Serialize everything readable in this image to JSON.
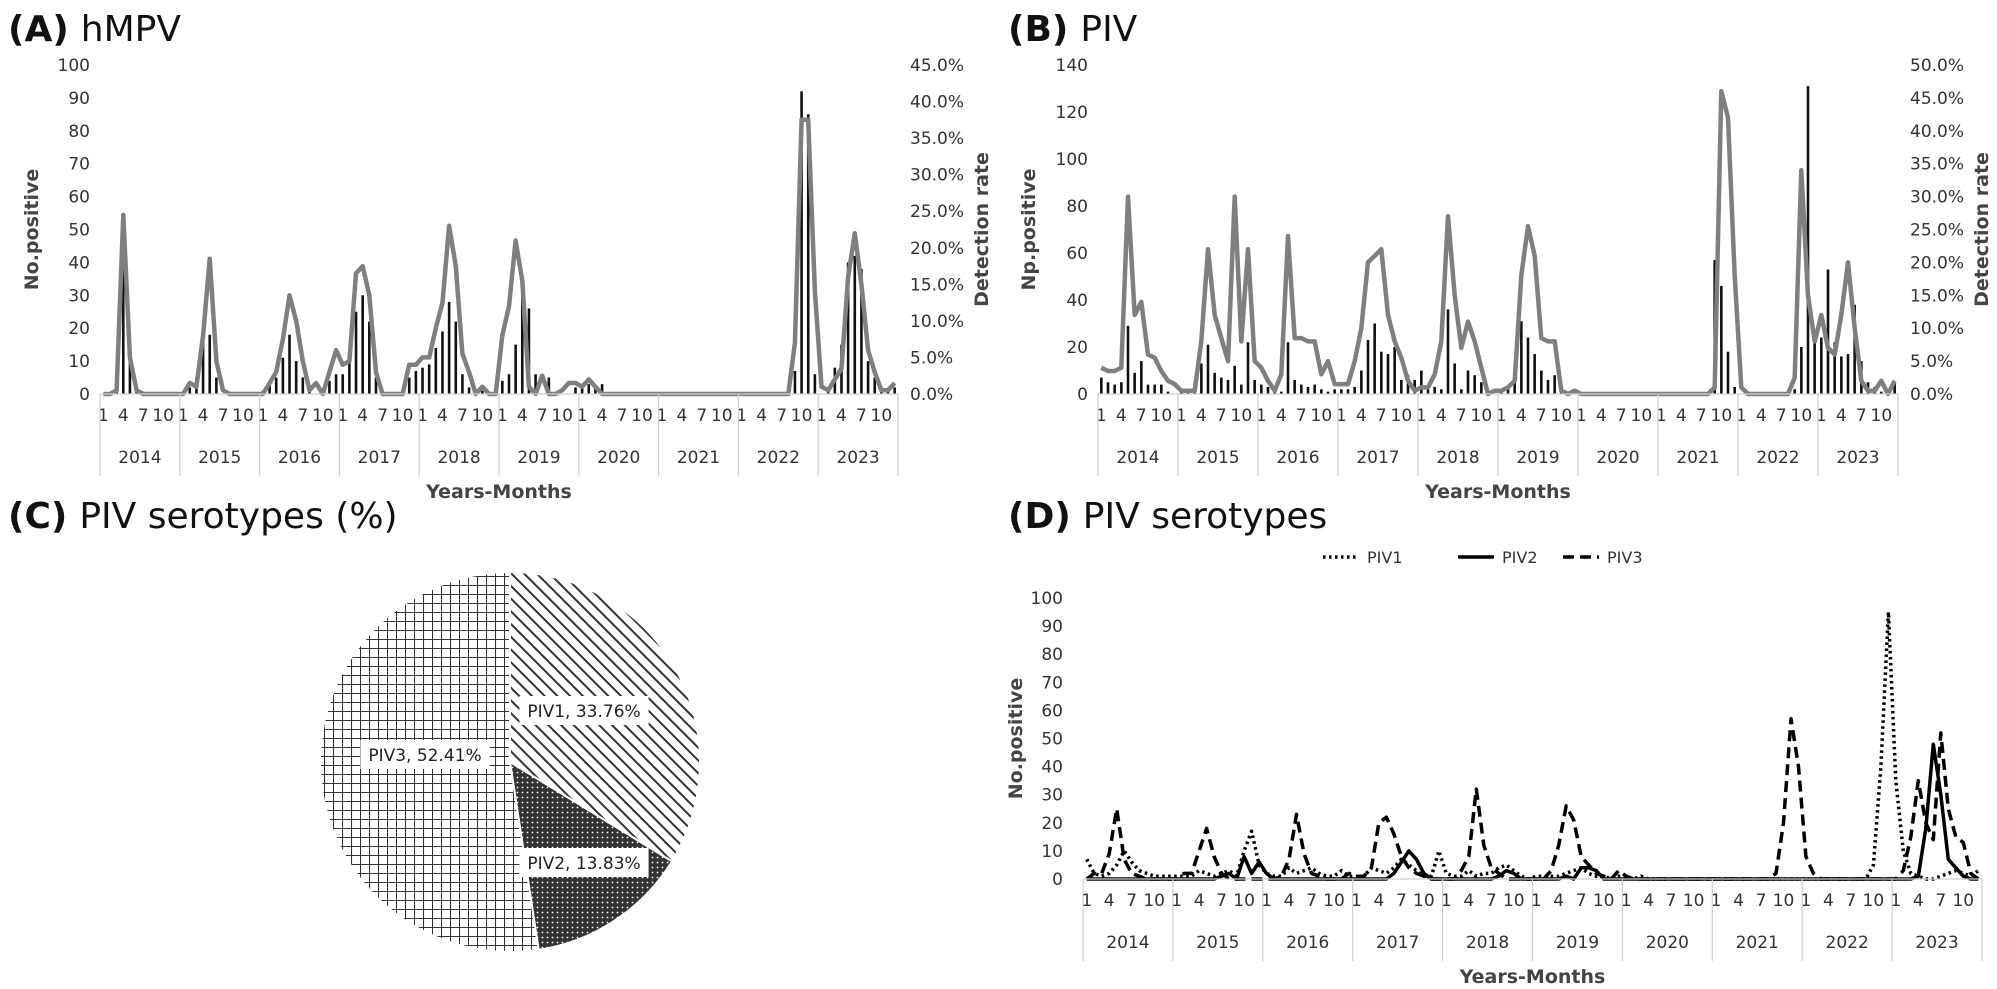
{
  "panel_a": {
    "letter": "(A)",
    "name": "hMPV"
  },
  "panel_b": {
    "letter": "(B)",
    "name": "PIV"
  },
  "panel_c": {
    "letter": "(C)",
    "name": "PIV serotypes (%)"
  },
  "panel_d": {
    "letter": "(D)",
    "name": "PIV serotypes"
  },
  "chart_data": [
    {
      "id": "A",
      "type": "bar+line",
      "title": "hMPV",
      "xlabel": "Years-Months",
      "ylabel": "No.positive",
      "y2label": "Detection rate",
      "ylim": [
        0,
        100
      ],
      "yticks": [
        "0",
        "10",
        "20",
        "30",
        "40",
        "50",
        "60",
        "70",
        "80",
        "90",
        "100"
      ],
      "y2lim": [
        0,
        45
      ],
      "y2ticks": [
        "0.0%",
        "5.0%",
        "10.0%",
        "15.0%",
        "20.0%",
        "25.0%",
        "30.0%",
        "35.0%",
        "40.0%",
        "45.0%"
      ],
      "years": [
        "2014",
        "2015",
        "2016",
        "2017",
        "2018",
        "2019",
        "2020",
        "2021",
        "2022",
        "2023"
      ],
      "month_ticks": [
        "1",
        "4",
        "7",
        "10"
      ],
      "series": [
        {
          "name": "No.positive",
          "kind": "bar",
          "values": [
            0,
            0,
            5,
            40,
            12,
            1,
            0,
            0,
            0,
            0,
            0,
            0,
            0,
            2,
            5,
            18,
            18,
            5,
            0,
            0,
            0,
            0,
            0,
            0,
            1,
            3,
            5,
            11,
            18,
            10,
            5,
            1,
            0,
            0,
            4,
            6,
            6,
            10,
            25,
            30,
            22,
            5,
            0,
            0,
            0,
            0,
            5,
            7,
            8,
            9,
            14,
            19,
            28,
            22,
            6,
            2,
            0,
            1,
            0,
            0,
            4,
            6,
            15,
            30,
            26,
            6,
            0,
            5,
            0,
            0,
            0,
            2,
            2,
            3,
            2,
            3,
            0,
            0,
            0,
            0,
            0,
            0,
            0,
            0,
            0,
            0,
            0,
            0,
            0,
            0,
            0,
            0,
            0,
            0,
            0,
            0,
            0,
            0,
            0,
            0,
            0,
            0,
            0,
            0,
            7,
            92,
            85,
            6,
            0,
            2,
            8,
            15,
            40,
            42,
            38,
            10,
            5,
            2,
            1,
            2
          ]
        },
        {
          "name": "Detection rate",
          "kind": "line",
          "values": [
            0,
            0,
            0.5,
            24.5,
            5,
            0.5,
            0,
            0,
            0,
            0,
            0,
            0,
            0,
            1.5,
            1,
            8,
            18.5,
            4.5,
            0.5,
            0,
            0,
            0,
            0,
            0,
            0,
            1.5,
            3,
            7.5,
            13.5,
            10,
            4.5,
            0.5,
            1.5,
            0,
            3,
            6,
            4,
            4.5,
            16.5,
            17.5,
            13.5,
            3,
            0,
            0,
            0,
            0,
            4,
            4,
            5,
            5,
            9,
            12.5,
            23,
            17.5,
            5.5,
            3,
            0,
            1,
            0,
            0,
            8,
            12,
            21,
            15.5,
            1,
            0,
            2.5,
            0,
            0,
            0.5,
            1.5,
            1.5,
            1,
            2,
            1,
            0,
            0,
            0,
            0,
            0,
            0,
            0,
            0,
            0,
            0,
            0,
            0,
            0,
            0,
            0,
            0,
            0,
            0,
            0,
            0,
            0,
            0,
            0,
            0,
            0,
            0,
            0,
            0,
            0,
            7,
            37.5,
            37.5,
            14,
            1,
            0.5,
            2,
            3.5,
            16,
            22,
            15,
            6,
            3,
            0.5,
            0.5,
            1.5
          ]
        }
      ]
    },
    {
      "id": "B",
      "type": "bar+line",
      "title": "PIV",
      "xlabel": "Years-Months",
      "ylabel": "Np.positive",
      "y2label": "Detection rate",
      "ylim": [
        0,
        140
      ],
      "yticks": [
        "0",
        "20",
        "40",
        "60",
        "80",
        "100",
        "120",
        "140"
      ],
      "y2lim": [
        0,
        50
      ],
      "y2ticks": [
        "0.0%",
        "5.0%",
        "10.0%",
        "15.0%",
        "20.0%",
        "25.0%",
        "30.0%",
        "35.0%",
        "40.0%",
        "45.0%",
        "50.0%"
      ],
      "years": [
        "2014",
        "2015",
        "2016",
        "2017",
        "2018",
        "2019",
        "2020",
        "2021",
        "2022",
        "2023"
      ],
      "month_ticks": [
        "1",
        "4",
        "7",
        "10"
      ],
      "series": [
        {
          "name": "No.positive",
          "kind": "bar",
          "values": [
            7,
            5,
            4,
            5,
            29,
            9,
            14,
            4,
            4,
            4,
            1,
            0,
            1,
            2,
            5,
            13,
            21,
            9,
            7,
            6,
            12,
            4,
            22,
            6,
            4,
            3,
            1,
            1,
            22,
            6,
            4,
            3,
            4,
            2,
            1,
            2,
            2,
            2,
            3,
            10,
            23,
            30,
            18,
            17,
            20,
            6,
            8,
            6,
            10,
            2,
            3,
            2,
            36,
            13,
            2,
            10,
            8,
            5,
            1,
            0,
            2,
            3,
            5,
            31,
            24,
            17,
            10,
            6,
            8,
            1,
            0,
            0,
            0,
            0,
            0,
            0,
            0,
            0,
            0,
            0,
            0,
            0,
            0,
            0,
            0,
            0,
            0,
            0,
            0,
            0,
            0,
            0,
            57,
            46,
            18,
            3,
            0,
            0,
            0,
            0,
            0,
            0,
            0,
            0,
            2,
            20,
            131,
            27,
            24,
            53,
            22,
            16,
            17,
            38,
            14,
            5,
            3,
            1,
            0,
            5
          ]
        },
        {
          "name": "Detection rate",
          "kind": "line",
          "values": [
            4,
            3.5,
            3.5,
            4,
            30,
            12,
            14,
            6,
            5.5,
            3.5,
            2,
            1.5,
            0.5,
            0.5,
            0.5,
            8,
            22,
            12,
            8.5,
            5,
            30,
            8,
            22,
            5,
            4,
            2,
            0.5,
            3,
            24,
            8.5,
            8.5,
            8,
            8,
            3,
            5,
            1.5,
            1.5,
            1.5,
            5,
            10,
            20,
            21,
            22,
            12,
            8,
            5.5,
            2,
            0.5,
            1,
            1,
            3,
            8,
            27,
            15,
            7,
            11,
            8,
            4,
            0,
            0.5,
            0.5,
            1,
            2,
            18,
            25.5,
            21,
            8.5,
            8,
            8,
            0.5,
            0,
            0.5,
            0,
            0,
            0,
            0,
            0,
            0,
            0,
            0,
            0,
            0,
            0,
            0,
            0,
            0,
            0,
            0,
            0,
            0,
            0,
            0,
            1,
            46,
            42,
            18,
            1,
            0,
            0,
            0,
            0,
            0,
            0,
            0,
            2.5,
            34,
            15,
            8,
            12,
            7,
            6,
            12,
            20,
            10,
            2,
            0.5,
            0.5,
            2,
            0,
            2
          ]
        }
      ]
    },
    {
      "id": "C",
      "type": "pie",
      "title": "PIV serotypes (%)",
      "labels": [
        "PIV1, 33.76%",
        "PIV2, 13.83%",
        "PIV3, 52.41%"
      ],
      "values": [
        33.76,
        13.83,
        52.41
      ]
    },
    {
      "id": "D",
      "type": "line",
      "title": "PIV serotypes",
      "xlabel": "Years-Months",
      "ylabel": "No.positive",
      "ylim": [
        0,
        100
      ],
      "yticks": [
        "0",
        "10",
        "20",
        "30",
        "40",
        "50",
        "60",
        "70",
        "80",
        "90",
        "100"
      ],
      "years": [
        "2014",
        "2015",
        "2016",
        "2017",
        "2018",
        "2019",
        "2020",
        "2021",
        "2022",
        "2023"
      ],
      "month_ticks": [
        "1",
        "4",
        "7",
        "10"
      ],
      "legend": [
        "PIV1",
        "PIV2",
        "PIV3"
      ],
      "series": [
        {
          "name": "PIV1",
          "style": "dotted",
          "values": [
            7,
            2,
            1,
            2,
            5,
            10,
            6,
            3,
            2,
            1,
            1,
            1,
            1,
            1,
            1,
            3,
            2,
            1,
            2,
            3,
            1,
            10,
            17,
            5,
            2,
            1,
            1,
            4,
            2,
            3,
            4,
            2,
            1,
            1,
            3,
            1,
            1,
            1,
            4,
            3,
            2,
            4,
            7,
            5,
            3,
            1,
            1,
            10,
            2,
            1,
            1,
            3,
            1,
            2,
            2,
            4,
            5,
            3,
            1,
            0,
            1,
            1,
            1,
            1,
            2,
            3,
            4,
            2,
            1,
            1,
            0,
            1,
            1,
            0,
            1,
            0,
            0,
            0,
            0,
            0,
            0,
            0,
            0,
            0,
            0,
            0,
            0,
            0,
            0,
            0,
            0,
            0,
            0,
            0,
            0,
            0,
            0,
            0,
            0,
            0,
            0,
            0,
            0,
            0,
            0,
            5,
            40,
            95,
            35,
            10,
            2,
            1,
            0,
            0,
            1,
            2,
            3,
            2,
            1,
            3
          ]
        },
        {
          "name": "PIV2",
          "style": "solid",
          "values": [
            0,
            0,
            0,
            0,
            0,
            0,
            0,
            0,
            0,
            0,
            0,
            0,
            0,
            0,
            0,
            0,
            0,
            0,
            1,
            2,
            0,
            8,
            2,
            6,
            2,
            0,
            0,
            0,
            0,
            0,
            0,
            0,
            0,
            0,
            0,
            0,
            0,
            0,
            0,
            0,
            0,
            2,
            6,
            10,
            7,
            2,
            0,
            0,
            0,
            0,
            0,
            0,
            0,
            0,
            0,
            1,
            3,
            2,
            0,
            0,
            0,
            0,
            0,
            0,
            1,
            0,
            4,
            4,
            3,
            0,
            0,
            0,
            0,
            0,
            0,
            0,
            0,
            0,
            0,
            0,
            0,
            0,
            0,
            0,
            0,
            0,
            0,
            0,
            0,
            0,
            0,
            0,
            0,
            0,
            0,
            0,
            0,
            0,
            0,
            0,
            0,
            0,
            0,
            0,
            0,
            0,
            0,
            0,
            0,
            0,
            0,
            1,
            18,
            48,
            30,
            7,
            4,
            1,
            0,
            0
          ]
        },
        {
          "name": "PIV3",
          "style": "dashed",
          "values": [
            0,
            2,
            2,
            9,
            25,
            7,
            2,
            1,
            0,
            0,
            0,
            0,
            0,
            2,
            2,
            10,
            18,
            8,
            2,
            0,
            0,
            0,
            0,
            0,
            0,
            0,
            1,
            7,
            23,
            9,
            2,
            1,
            0,
            0,
            0,
            2,
            1,
            1,
            4,
            20,
            22,
            16,
            8,
            4,
            2,
            1,
            0,
            0,
            0,
            0,
            3,
            8,
            32,
            12,
            4,
            2,
            0,
            0,
            0,
            0,
            0,
            0,
            3,
            12,
            26,
            21,
            8,
            5,
            2,
            1,
            0,
            3,
            1,
            0,
            0,
            0,
            0,
            0,
            0,
            0,
            0,
            0,
            0,
            0,
            0,
            0,
            0,
            0,
            0,
            0,
            0,
            0,
            2,
            20,
            57,
            40,
            8,
            2,
            0,
            0,
            0,
            0,
            0,
            0,
            0,
            0,
            0,
            0,
            0,
            3,
            15,
            35,
            20,
            14,
            52,
            25,
            15,
            13,
            2,
            0
          ]
        }
      ]
    }
  ]
}
